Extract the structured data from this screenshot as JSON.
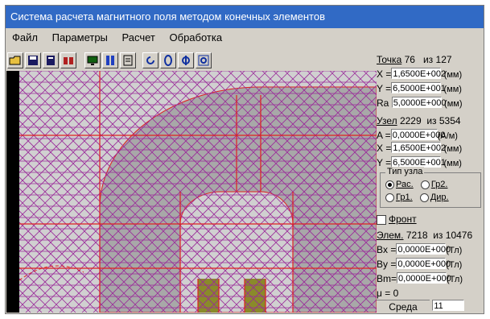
{
  "window": {
    "title": "Система расчета магнитного поля методом конечных элементов"
  },
  "menu": {
    "items": [
      "Файл",
      "Параметры",
      "Расчет",
      "Обработка"
    ]
  },
  "toolbar": {
    "buttons": [
      "open-icon",
      "save-icon",
      "print-icon",
      "find-icon",
      "monitor-icon",
      "columns-icon",
      "layers-icon",
      "rotate-icon",
      "circle-icon",
      "phi-icon",
      "phi-grid-icon"
    ]
  },
  "point": {
    "label": "Точка",
    "index": "76",
    "of_label": "из",
    "total": "127",
    "x_label": "X =",
    "x_value": "1,6500E+002",
    "x_unit": "(мм)",
    "y_label": "Y =",
    "y_value": "6,5000E+001",
    "y_unit": "(мм)",
    "ra_label": "Ra",
    "ra_value": "5,0000E+000",
    "ra_unit": "(мм)"
  },
  "node": {
    "label": "Узел",
    "index": "2229",
    "of_label": "из",
    "total": "5354",
    "a_label": "A =",
    "a_value": "0,0000E+000",
    "a_unit": "(А/м)",
    "x_label": "X =",
    "x_value": "1,6500E+002",
    "x_unit": "(мм)",
    "y_label": "Y =",
    "y_value": "6,5000E+001",
    "y_unit": "(мм)",
    "type_group_label": "Тип узла",
    "type_options": [
      "Рас.",
      "Гр2.",
      "Гр1.",
      "Дир."
    ],
    "type_selected": "Рас.",
    "front_label": "Фронт"
  },
  "element": {
    "label": "Элем.",
    "index": "7218",
    "of_label": "из",
    "total": "10476",
    "bx_label": "Bx =",
    "bx_value": "0,0000E+000",
    "bx_unit": "(Тл)",
    "by_label": "By =",
    "by_value": "0,0000E+000",
    "by_unit": "(Тл)",
    "bm_label": "Bm=",
    "bm_value": "0,0000E+000",
    "bm_unit": "(Тл)",
    "mu_label": "μ =",
    "mu_value": "0",
    "medium_label": "Среда",
    "medium_value": "11"
  },
  "colors": {
    "mesh": "#9a2a9a",
    "boundary": "#e02020",
    "core": "#a8a8a8",
    "coil": "#8a8a2a",
    "background": "#d0d0d0"
  }
}
